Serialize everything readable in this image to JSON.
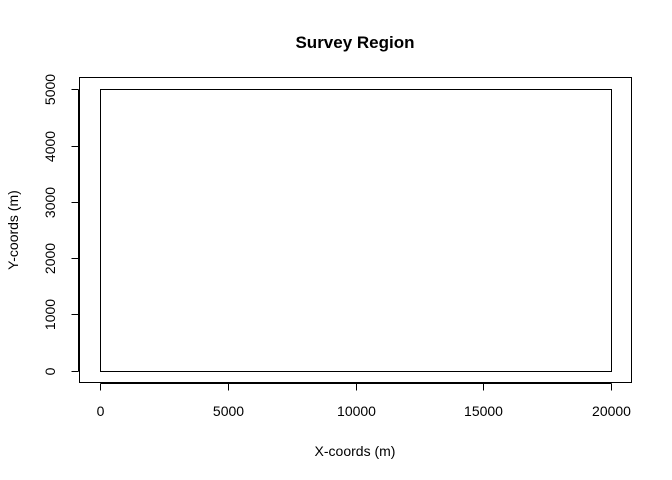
{
  "chart_data": {
    "type": "polygon",
    "title": "Survey Region",
    "xlabel": "X-coords (m)",
    "ylabel": "Y-coords (m)",
    "xlim": [
      -800,
      20800
    ],
    "ylim": [
      -200,
      5200
    ],
    "xticks": [
      0,
      5000,
      10000,
      15000,
      20000
    ],
    "yticks": [
      0,
      1000,
      2000,
      3000,
      4000,
      5000
    ],
    "region": {
      "x": [
        0,
        20000,
        20000,
        0
      ],
      "y": [
        0,
        0,
        5000,
        5000
      ]
    }
  }
}
